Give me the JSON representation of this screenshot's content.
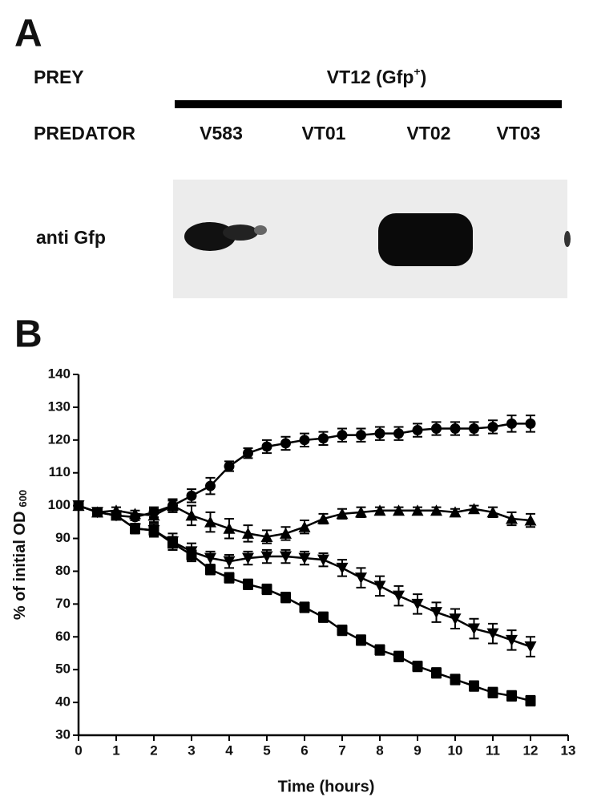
{
  "panel_a": {
    "label": "A",
    "prey": "PREY",
    "prey_strain": {
      "text": "VT12 (Gfp",
      "sup": "+",
      "tail": ")"
    },
    "predator": "PREDATOR",
    "lanes": [
      "V583",
      "VT01",
      "VT02",
      "VT03"
    ],
    "blot_label": "anti Gfp"
  },
  "panel_b_label": "B",
  "chart_data": {
    "type": "line",
    "x_label": "Time (hours)",
    "y_label": "% of initial OD",
    "y_label_subscript": "600",
    "x": [
      0,
      0.5,
      1,
      1.5,
      2,
      2.5,
      3,
      3.5,
      4,
      4.5,
      5,
      5.5,
      6,
      6.5,
      7,
      7.5,
      8,
      8.5,
      9,
      9.5,
      10,
      10.5,
      11,
      11.5,
      12
    ],
    "series": [
      {
        "color": "#000000",
        "marker": "circle",
        "values": [
          100,
          98,
          97,
          96.5,
          98,
          100,
          103,
          106,
          112,
          116,
          118,
          119,
          120,
          120.5,
          121.5,
          121.5,
          122,
          122,
          123,
          123.5,
          123.5,
          123.5,
          124,
          125,
          125
        ],
        "errors": [
          1,
          1,
          1,
          1,
          1.5,
          1.5,
          2,
          2.5,
          1.5,
          1.5,
          2,
          2,
          2,
          2,
          2,
          2,
          2,
          2,
          2,
          2,
          2,
          2,
          2,
          2.5,
          2.5
        ]
      },
      {
        "color": "#000000",
        "marker": "triangle-up",
        "values": [
          100,
          98,
          98.5,
          97.5,
          97,
          100,
          97,
          95,
          93,
          91.5,
          90.5,
          91.5,
          93.5,
          96,
          97.5,
          98,
          98.5,
          98.5,
          98.5,
          98.5,
          98,
          99,
          98,
          96,
          95.5
        ],
        "errors": [
          1,
          1,
          1,
          1,
          2,
          2,
          3,
          3,
          3,
          2.5,
          2,
          2,
          2,
          1.5,
          1.5,
          1.5,
          1,
          1,
          1,
          1,
          1,
          1,
          1.5,
          2,
          2
        ]
      },
      {
        "color": "#000000",
        "marker": "triangle-down",
        "values": [
          100,
          98,
          97,
          93,
          92.5,
          89,
          86,
          84,
          83,
          84,
          84.5,
          84.5,
          84,
          83.5,
          81,
          78,
          75.5,
          72.5,
          70,
          67.5,
          65.5,
          62.5,
          61,
          59,
          57
        ],
        "errors": [
          1,
          1,
          1,
          1.5,
          2,
          2.5,
          2.5,
          2,
          2,
          2,
          2,
          2,
          2,
          2,
          2.5,
          3,
          3,
          3,
          3,
          3,
          3,
          3,
          3,
          3,
          3
        ]
      },
      {
        "color": "#000000",
        "marker": "square",
        "values": [
          100,
          98,
          97,
          93,
          92.5,
          88.5,
          85,
          80.5,
          78,
          76,
          74.5,
          72,
          69,
          66,
          62,
          59,
          56,
          54,
          51,
          49,
          47,
          45,
          43,
          42,
          40.5
        ],
        "errors": [
          1,
          1,
          1,
          1.5,
          1.5,
          2,
          2,
          1.5,
          1.5,
          1.5,
          1.5,
          1.5,
          1.5,
          1.5,
          1.5,
          1.5,
          1.5,
          1.5,
          1.5,
          1.5,
          1.5,
          1.5,
          1.5,
          1.5,
          1.5
        ]
      }
    ],
    "xlim": [
      0,
      13
    ],
    "xticks": [
      0,
      1,
      2,
      3,
      4,
      5,
      6,
      7,
      8,
      9,
      10,
      11,
      12,
      13
    ],
    "ylim": [
      30,
      140
    ],
    "yticks": [
      30,
      40,
      50,
      60,
      70,
      80,
      90,
      100,
      110,
      120,
      130,
      140
    ]
  }
}
